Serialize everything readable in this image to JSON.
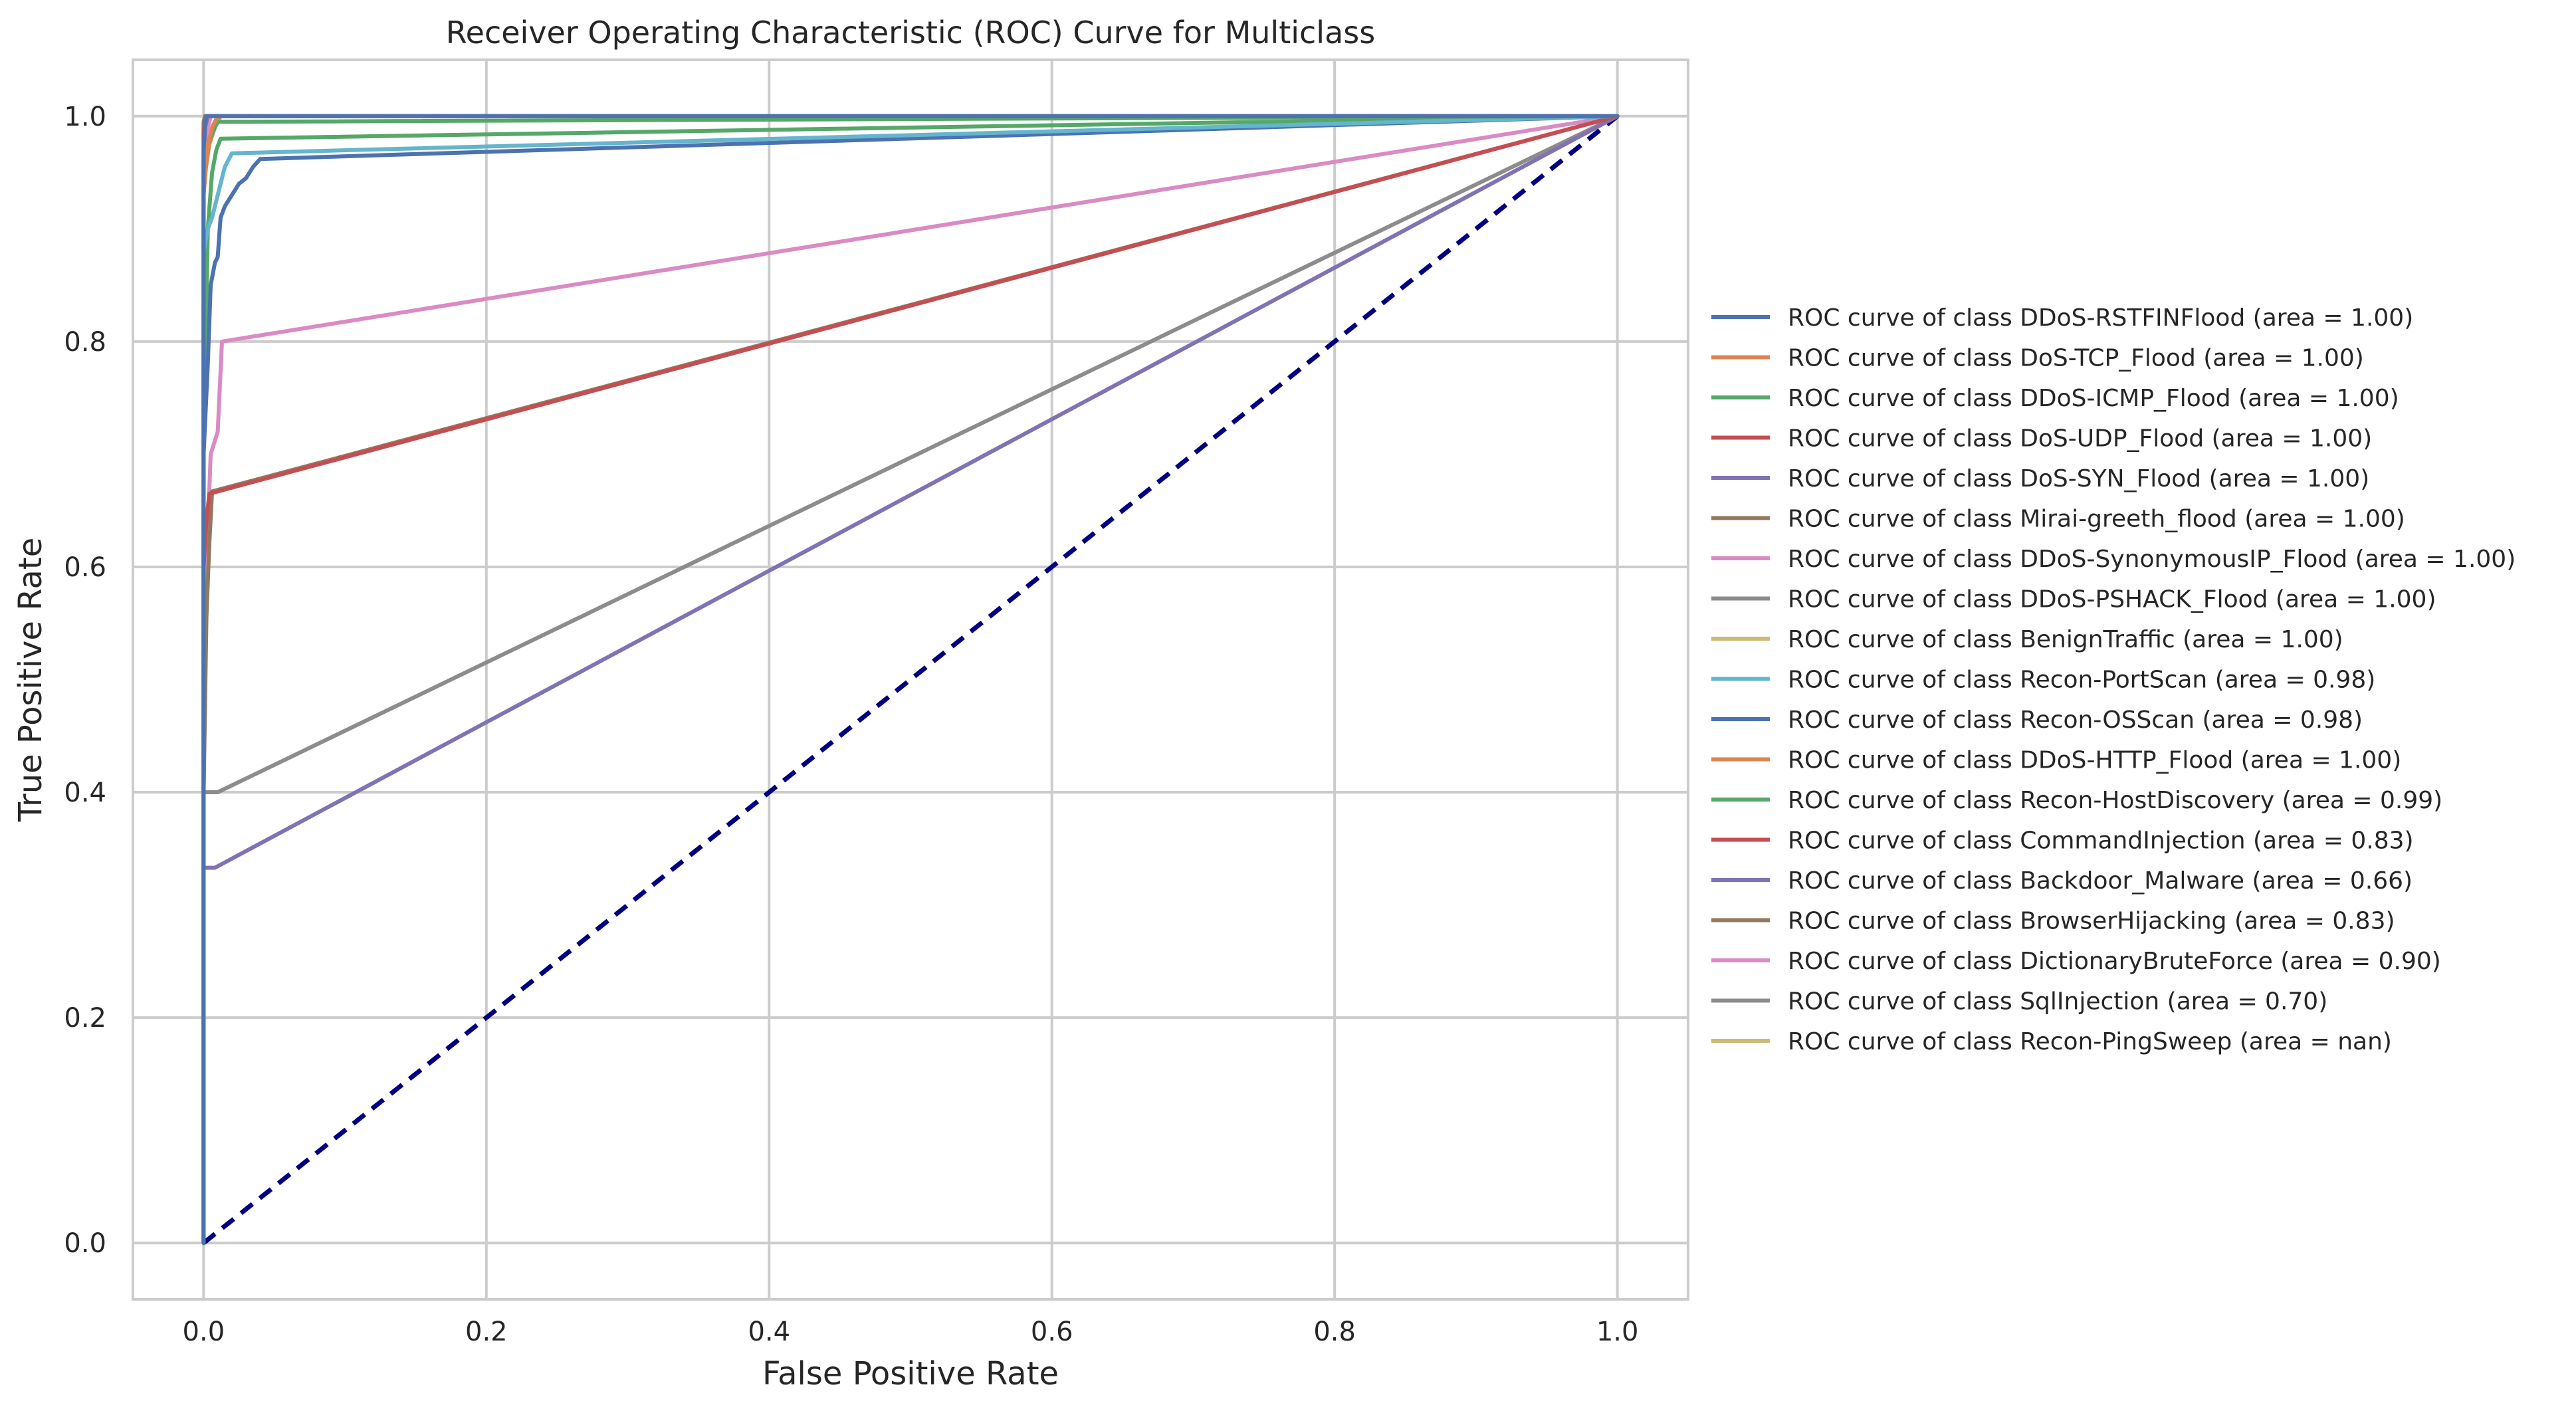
{
  "chart_data": {
    "type": "line",
    "title": "Receiver Operating Characteristic (ROC) Curve for Multiclass",
    "xlabel": "False Positive Rate",
    "ylabel": "True Positive Rate",
    "xlim": [
      -0.05,
      1.05
    ],
    "ylim": [
      -0.05,
      1.05
    ],
    "xticks": [
      0.0,
      0.2,
      0.4,
      0.6,
      0.8,
      1.0
    ],
    "xtick_labels": [
      "0.0",
      "0.2",
      "0.4",
      "0.6",
      "0.8",
      "1.0"
    ],
    "yticks": [
      0.0,
      0.2,
      0.4,
      0.6,
      0.8,
      1.0
    ],
    "ytick_labels": [
      "0.0",
      "0.2",
      "0.4",
      "0.6",
      "0.8",
      "1.0"
    ],
    "grid": true,
    "legend_position": "right, outside plot",
    "series": [
      {
        "name": "ROC curve of class DDoS-RSTFINFlood (area = 1.00)",
        "color": "#4c72b0",
        "x": [
          0.0,
          0.0,
          0.001,
          0.002,
          1.0
        ],
        "y": [
          0.0,
          0.97,
          0.995,
          1.0,
          1.0
        ]
      },
      {
        "name": "ROC curve of class DoS-TCP_Flood (area = 1.00)",
        "color": "#dd8452",
        "x": [
          0.0,
          0.0,
          0.003,
          0.006,
          0.01,
          1.0
        ],
        "y": [
          0.0,
          0.93,
          0.975,
          0.99,
          1.0,
          1.0
        ]
      },
      {
        "name": "ROC curve of class DDoS-ICMP_Flood (area = 1.00)",
        "color": "#55a868",
        "x": [
          0.0,
          0.0,
          0.003,
          0.006,
          0.01,
          1.0
        ],
        "y": [
          0.0,
          0.95,
          0.975,
          0.985,
          0.995,
          1.0
        ]
      },
      {
        "name": "ROC curve of class DoS-UDP_Flood (area = 1.00)",
        "color": "#c44e52",
        "x": [
          0.0,
          0.0,
          0.002,
          1.0
        ],
        "y": [
          0.0,
          0.985,
          1.0,
          1.0
        ]
      },
      {
        "name": "ROC curve of class DoS-SYN_Flood (area = 1.00)",
        "color": "#8172b3",
        "x": [
          0.0,
          0.0,
          0.001,
          0.003,
          1.0
        ],
        "y": [
          0.0,
          0.96,
          0.99,
          1.0,
          1.0
        ]
      },
      {
        "name": "ROC curve of class Mirai-greeth_flood (area = 1.00)",
        "color": "#937860",
        "x": [
          0.0,
          0.0,
          0.001,
          1.0
        ],
        "y": [
          0.0,
          0.995,
          1.0,
          1.0
        ]
      },
      {
        "name": "ROC curve of class DDoS-SynonymousIP_Flood (area = 1.00)",
        "color": "#da8bc3",
        "x": [
          0.0,
          0.0,
          0.002,
          0.005,
          1.0
        ],
        "y": [
          0.0,
          0.95,
          0.985,
          1.0,
          1.0
        ]
      },
      {
        "name": "ROC curve of class DDoS-PSHACK_Flood (area = 1.00)",
        "color": "#8c8c8c",
        "x": [
          0.0,
          0.0,
          0.001,
          1.0
        ],
        "y": [
          0.0,
          0.99,
          1.0,
          1.0
        ]
      },
      {
        "name": "ROC curve of class BenignTraffic (area = 1.00)",
        "color": "#ccb974",
        "x": [
          0.0,
          0.0,
          0.001,
          1.0
        ],
        "y": [
          0.0,
          0.995,
          1.0,
          1.0
        ]
      },
      {
        "name": "ROC curve of class Recon-PortScan (area = 0.98)",
        "color": "#64b5cd",
        "x": [
          0.0,
          0.0,
          0.003,
          0.006,
          0.01,
          0.015,
          0.02,
          1.0
        ],
        "y": [
          0.0,
          0.88,
          0.9,
          0.91,
          0.93,
          0.955,
          0.967,
          1.0
        ]
      },
      {
        "name": "ROC curve of class Recon-OSScan (area = 0.98)",
        "color": "#4c72b0",
        "x": [
          0.0,
          0.0,
          0.003,
          0.005,
          0.008,
          0.01,
          0.012,
          0.015,
          0.02,
          0.025,
          0.03,
          0.035,
          0.04,
          1.0
        ],
        "y": [
          0.0,
          0.7,
          0.78,
          0.85,
          0.87,
          0.875,
          0.91,
          0.92,
          0.93,
          0.94,
          0.945,
          0.955,
          0.962,
          1.0
        ]
      },
      {
        "name": "ROC curve of class DDoS-HTTP_Flood (area = 1.00)",
        "color": "#dd8452",
        "x": [
          0.0,
          0.0,
          0.004,
          0.008,
          0.012,
          1.0
        ],
        "y": [
          0.0,
          0.94,
          0.975,
          0.99,
          1.0,
          1.0
        ]
      },
      {
        "name": "ROC curve of class Recon-HostDiscovery (area = 0.99)",
        "color": "#55a868",
        "x": [
          0.0,
          0.0,
          0.003,
          0.006,
          0.009,
          0.012,
          1.0
        ],
        "y": [
          0.0,
          0.7,
          0.9,
          0.95,
          0.97,
          0.98,
          1.0
        ]
      },
      {
        "name": "ROC curve of class CommandInjection (area = 0.83)",
        "color": "#c44e52",
        "x": [
          0.0,
          0.0,
          0.002,
          0.004,
          1.0
        ],
        "y": [
          0.0,
          0.6,
          0.64,
          0.665,
          1.0
        ]
      },
      {
        "name": "ROC curve of class Backdoor_Malware (area = 0.66)",
        "color": "#8172b3",
        "x": [
          0.0,
          0.0,
          0.008,
          1.0
        ],
        "y": [
          0.0,
          0.333,
          0.333,
          1.0
        ]
      },
      {
        "name": "ROC curve of class BrowserHijacking (area = 0.83)",
        "color": "#937860",
        "x": [
          0.0,
          0.0,
          0.002,
          0.004,
          0.006,
          1.0
        ],
        "y": [
          0.0,
          0.4,
          0.555,
          0.62,
          0.667,
          1.0
        ]
      },
      {
        "name": "ROC curve of class DictionaryBruteForce (area = 0.90)",
        "color": "#da8bc3",
        "x": [
          0.0,
          0.0,
          0.002,
          0.005,
          0.01,
          0.013,
          1.0
        ],
        "y": [
          0.0,
          0.4,
          0.6,
          0.7,
          0.72,
          0.8,
          1.0
        ]
      },
      {
        "name": "ROC curve of class SqlInjection (area = 0.70)",
        "color": "#8c8c8c",
        "x": [
          0.0,
          0.0,
          0.01,
          1.0
        ],
        "y": [
          0.0,
          0.4,
          0.4,
          1.0
        ]
      },
      {
        "name": "ROC curve of class Recon-PingSweep (area = nan)",
        "color": "#ccb974",
        "x": [],
        "y": []
      }
    ],
    "reference_line": {
      "x": [
        0.0,
        1.0
      ],
      "y": [
        0.0,
        1.0
      ],
      "color": "#000080",
      "style": "dashed"
    }
  }
}
